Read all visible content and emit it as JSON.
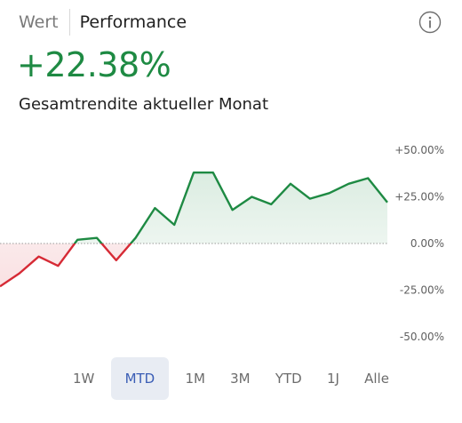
{
  "tabs": {
    "value_label": "Wert",
    "performance_label": "Performance"
  },
  "header": {
    "performance_value": "+22.38%",
    "caption": "Gesamtrendite aktueller Monat"
  },
  "colors": {
    "positive": "#1e8a43",
    "negative": "#d62a35",
    "selected_range": "#3a5db5"
  },
  "chart_data": {
    "type": "area",
    "y_ticks": [
      "+50.00%",
      "+25.00%",
      "0.00%",
      "-25.00%",
      "-50.00%"
    ],
    "ylim": [
      -50,
      50
    ],
    "baseline": 0,
    "values": [
      -23,
      -16,
      -7,
      -12,
      2,
      3,
      -9,
      3,
      19,
      10,
      38,
      38,
      18,
      25,
      21,
      32,
      24,
      27,
      32,
      35,
      22
    ],
    "grid": false
  },
  "ranges": {
    "items": [
      "1W",
      "MTD",
      "1M",
      "3M",
      "YTD",
      "1J",
      "Alle"
    ],
    "selected": "MTD"
  }
}
